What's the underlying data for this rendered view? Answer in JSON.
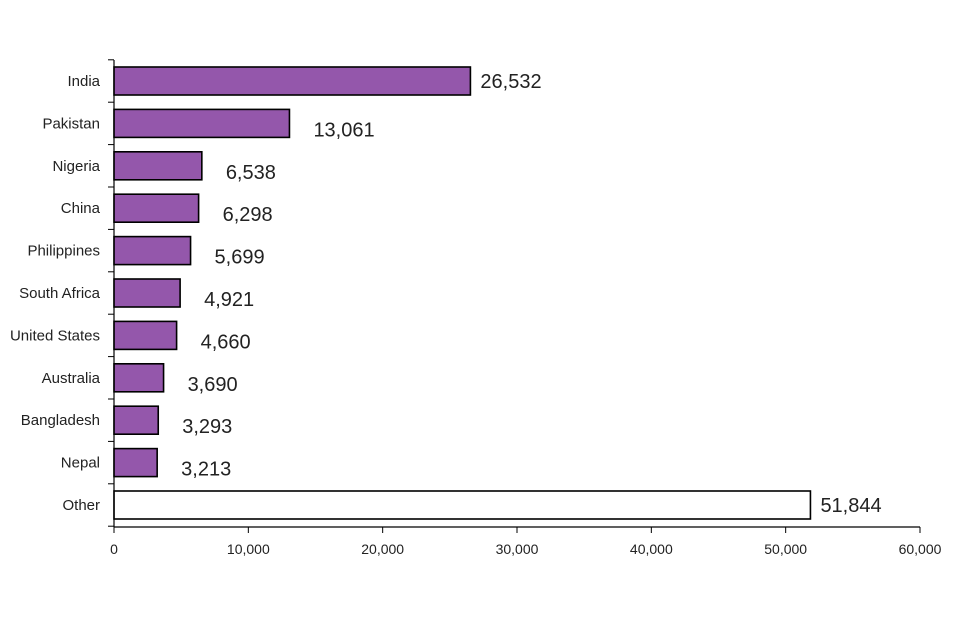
{
  "chart_data": {
    "type": "bar",
    "orientation": "horizontal",
    "title": "",
    "xlabel": "",
    "ylabel": "",
    "categories": [
      "India",
      "Pakistan",
      "Nigeria",
      "China",
      "Philippines",
      "South Africa",
      "United States",
      "Australia",
      "Bangladesh",
      "Nepal",
      "Other"
    ],
    "values": [
      26532,
      13061,
      6538,
      6298,
      5699,
      4921,
      4660,
      3690,
      3293,
      3213,
      51844
    ],
    "value_labels": [
      "26,532",
      "13,061",
      "6,538",
      "6,298",
      "5,699",
      "4,921",
      "4,660",
      "3,690",
      "3,293",
      "3,213",
      "51,844"
    ],
    "xlim": [
      0,
      60000
    ],
    "xticks": [
      0,
      10000,
      20000,
      30000,
      40000,
      50000,
      60000
    ],
    "xtick_labels": [
      "0",
      "10,000",
      "20,000",
      "30,000",
      "40,000",
      "50,000",
      "60,000"
    ],
    "grid": false,
    "colors": {
      "bar_fill": "#9457ab",
      "other_fill": "#ffffff",
      "bar_stroke": "#000000",
      "axis": "#000000"
    }
  }
}
